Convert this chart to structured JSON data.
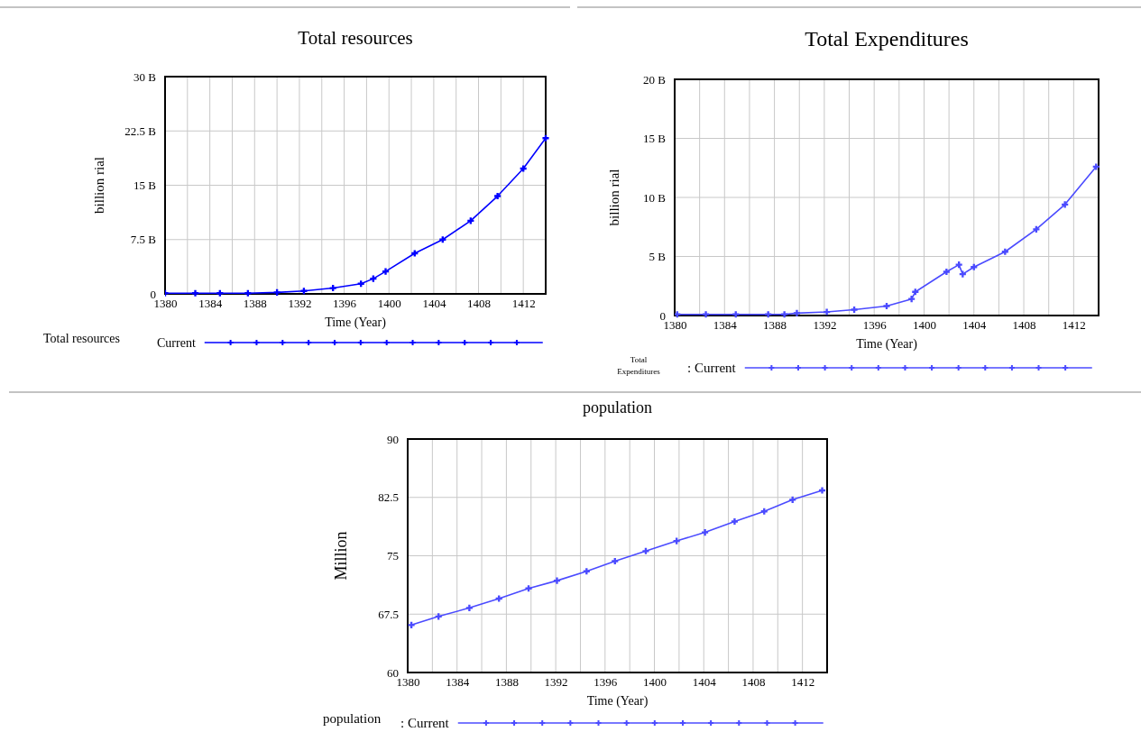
{
  "chart_data": [
    {
      "type": "line",
      "title": "Total resources",
      "xlabel": "Time (Year)",
      "ylabel": "billion rial",
      "legend_title": "Total resources",
      "legend": "bottom",
      "grid": true,
      "marker": "cross",
      "line_style": "solid",
      "xlim": [
        1380,
        1414
      ],
      "xticks": [
        1380,
        {
          "value": 1382,
          "label": null
        },
        1384,
        {
          "value": 1386,
          "label": null
        },
        1388,
        {
          "value": 1390,
          "label": null
        },
        1392,
        {
          "value": 1394,
          "label": null
        },
        1396,
        {
          "value": 1398,
          "label": null
        },
        1400,
        {
          "value": 1402,
          "label": null
        },
        1404,
        {
          "value": 1406,
          "label": null
        },
        1408,
        {
          "value": 1410,
          "label": null
        },
        1412,
        {
          "value": 1414,
          "label": null
        }
      ],
      "ylim": [
        0,
        30
      ],
      "yticks": [
        0,
        {
          "value": 7.5,
          "label": "7.5 B"
        },
        {
          "value": 15,
          "label": "15 B"
        },
        {
          "value": 22.5,
          "label": "22.5 B"
        },
        {
          "value": 30,
          "label": "30 B"
        }
      ],
      "x": [
        1380,
        1382.7,
        1384.9,
        1387.4,
        1390,
        1392.4,
        1395,
        1397.5,
        1398.6,
        1399.7,
        1402.3,
        1404.8,
        1407.3,
        1409.7,
        1412,
        1414
      ],
      "series": [
        {
          "name": "Current",
          "color": "#0000ff",
          "values": [
            0.1,
            0.1,
            0.1,
            0.1,
            0.2,
            0.4,
            0.8,
            1.4,
            2.1,
            3.1,
            5.6,
            7.5,
            10.1,
            13.5,
            17.3,
            21.5
          ]
        }
      ]
    },
    {
      "type": "line",
      "title": "Total Expenditures",
      "xlabel": "Time (Year)",
      "ylabel": "billion rial",
      "legend_title": "Total Expenditures",
      "legend": "bottom",
      "grid": true,
      "marker": "cross",
      "line_style": "solid",
      "xlim": [
        1380,
        1414
      ],
      "xticks": [
        1380,
        {
          "value": 1382,
          "label": null
        },
        1384,
        {
          "value": 1386,
          "label": null
        },
        1388,
        {
          "value": 1390,
          "label": null
        },
        1392,
        {
          "value": 1394,
          "label": null
        },
        1396,
        {
          "value": 1398,
          "label": null
        },
        1400,
        {
          "value": 1402,
          "label": null
        },
        1404,
        {
          "value": 1406,
          "label": null
        },
        1408,
        {
          "value": 1410,
          "label": null
        },
        1412,
        {
          "value": 1414,
          "label": null
        }
      ],
      "ylim": [
        0,
        20
      ],
      "yticks": [
        0,
        {
          "value": 5,
          "label": "5 B"
        },
        {
          "value": 10,
          "label": "10 B"
        },
        {
          "value": 15,
          "label": "15 B"
        },
        {
          "value": 20,
          "label": "20 B"
        }
      ],
      "x": [
        1380.2,
        1382.5,
        1384.9,
        1387.5,
        1388.8,
        1389.8,
        1392.2,
        1394.4,
        1397,
        1399,
        1399.3,
        1401.8,
        1402.8,
        1403.1,
        1404,
        1406.5,
        1409,
        1411.3,
        1413.8
      ],
      "series": [
        {
          "name": ": Current",
          "color": "#4b4bff",
          "values": [
            0.1,
            0.1,
            0.1,
            0.1,
            0.1,
            0.2,
            0.3,
            0.5,
            0.8,
            1.4,
            2,
            3.7,
            4.3,
            3.5,
            4.1,
            5.4,
            7.3,
            9.4,
            12.6
          ]
        }
      ]
    },
    {
      "type": "line",
      "title": "population",
      "xlabel": "Time (Year)",
      "ylabel": "Million",
      "legend_title": "population",
      "legend": "bottom",
      "grid": true,
      "marker": "cross",
      "line_style": "solid",
      "xlim": [
        1380,
        1414
      ],
      "xticks": [
        1380,
        {
          "value": 1382,
          "label": null
        },
        1384,
        {
          "value": 1386,
          "label": null
        },
        1388,
        {
          "value": 1390,
          "label": null
        },
        1392,
        {
          "value": 1394,
          "label": null
        },
        1396,
        {
          "value": 1398,
          "label": null
        },
        1400,
        {
          "value": 1402,
          "label": null
        },
        1404,
        {
          "value": 1406,
          "label": null
        },
        1408,
        {
          "value": 1410,
          "label": null
        },
        1412,
        {
          "value": 1414,
          "label": null
        }
      ],
      "ylim": [
        60,
        90
      ],
      "yticks": [
        60,
        67.5,
        75,
        82.5,
        90
      ],
      "x": [
        1380.3,
        1382.5,
        1385,
        1387.4,
        1389.8,
        1392.1,
        1394.5,
        1396.8,
        1399.3,
        1401.8,
        1404.1,
        1406.5,
        1408.9,
        1411.2,
        1413.6
      ],
      "series": [
        {
          "name": ": Current",
          "color": "#4b4bff",
          "values": [
            66.1,
            67.2,
            68.3,
            69.5,
            70.8,
            71.8,
            73,
            74.3,
            75.6,
            76.9,
            78,
            79.4,
            80.7,
            82.2,
            83.4
          ]
        }
      ]
    }
  ]
}
